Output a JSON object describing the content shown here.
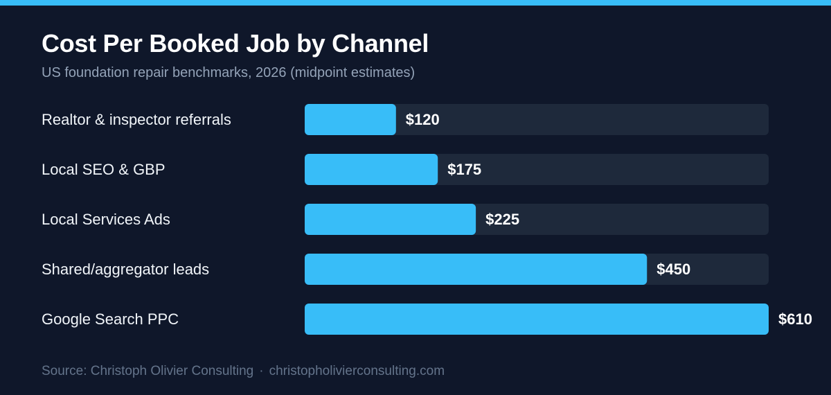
{
  "title": "Cost Per Booked Job by Channel",
  "subtitle": "US foundation repair benchmarks, 2026 (midpoint estimates)",
  "footer": {
    "source": "Source: Christoph Olivier Consulting",
    "separator": "·",
    "url": "christopholivierconsulting.com"
  },
  "colors": {
    "background": "#0f172a",
    "bar": "#38bdf8",
    "track": "#1e293b",
    "accent_strip": "#38bdf8"
  },
  "chart_data": {
    "type": "bar",
    "orientation": "horizontal",
    "title": "Cost Per Booked Job by Channel",
    "subtitle": "US foundation repair benchmarks, 2026 (midpoint estimates)",
    "categories": [
      "Realtor & inspector referrals",
      "Local SEO & GBP",
      "Local Services Ads",
      "Shared/aggregator leads",
      "Google Search PPC"
    ],
    "values": [
      120,
      175,
      225,
      450,
      610
    ],
    "value_labels": [
      "$120",
      "$175",
      "$225",
      "$450",
      "$610"
    ],
    "xlim": [
      0,
      610
    ],
    "grid": false,
    "legend": "none"
  }
}
